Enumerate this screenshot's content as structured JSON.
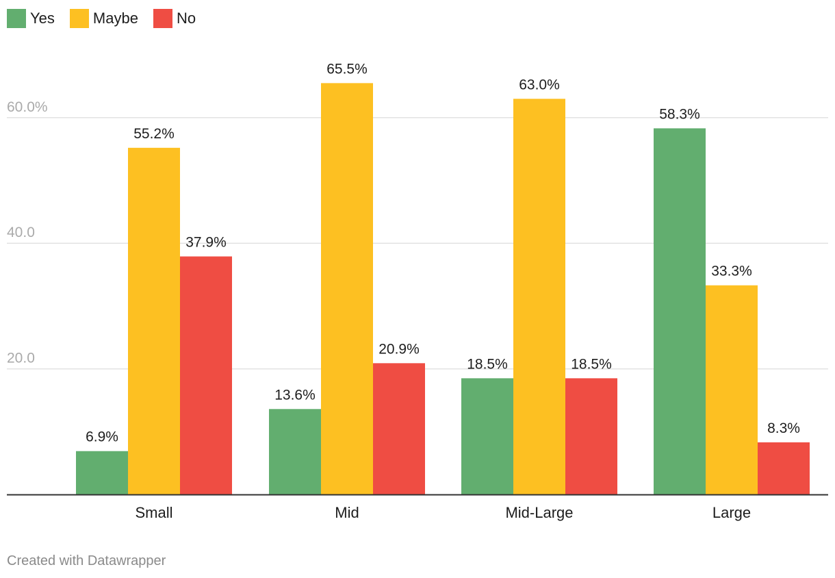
{
  "colors": {
    "yes": "#62ae6f",
    "maybe": "#fdc022",
    "no": "#ef4d43",
    "grid": "#e2e2e2",
    "axis": "#333333",
    "tick_text": "#aaaaaa",
    "label_text": "#1d1d1d",
    "footer_text": "#8a8a8a"
  },
  "legend": [
    {
      "label": "Yes",
      "color": "#62ae6f"
    },
    {
      "label": "Maybe",
      "color": "#fdc022"
    },
    {
      "label": "No",
      "color": "#ef4d43"
    }
  ],
  "footer": "Created with Datawrapper",
  "chart_data": {
    "type": "bar",
    "categories": [
      "Small",
      "Mid",
      "Mid-Large",
      "Large"
    ],
    "series": [
      {
        "name": "Yes",
        "values": [
          6.9,
          13.6,
          18.5,
          58.3
        ],
        "labels": [
          "6.9%",
          "13.6%",
          "18.5%",
          "58.3%"
        ],
        "color": "#62ae6f"
      },
      {
        "name": "Maybe",
        "values": [
          55.2,
          65.5,
          63.0,
          33.3
        ],
        "labels": [
          "55.2%",
          "65.5%",
          "63.0%",
          "33.3%"
        ],
        "color": "#fdc022"
      },
      {
        "name": "No",
        "values": [
          37.9,
          20.9,
          18.5,
          8.3
        ],
        "labels": [
          "37.9%",
          "20.9%",
          "18.5%",
          "8.3%"
        ],
        "color": "#ef4d43"
      }
    ],
    "y_ticks": [
      {
        "value": 20,
        "label": "20.0"
      },
      {
        "value": 40,
        "label": "40.0"
      },
      {
        "value": 60,
        "label": "60.0%"
      }
    ],
    "ylim": [
      0,
      60
    ],
    "grid": true,
    "legend_position": "top-left",
    "title": "",
    "xlabel": "",
    "ylabel": ""
  }
}
